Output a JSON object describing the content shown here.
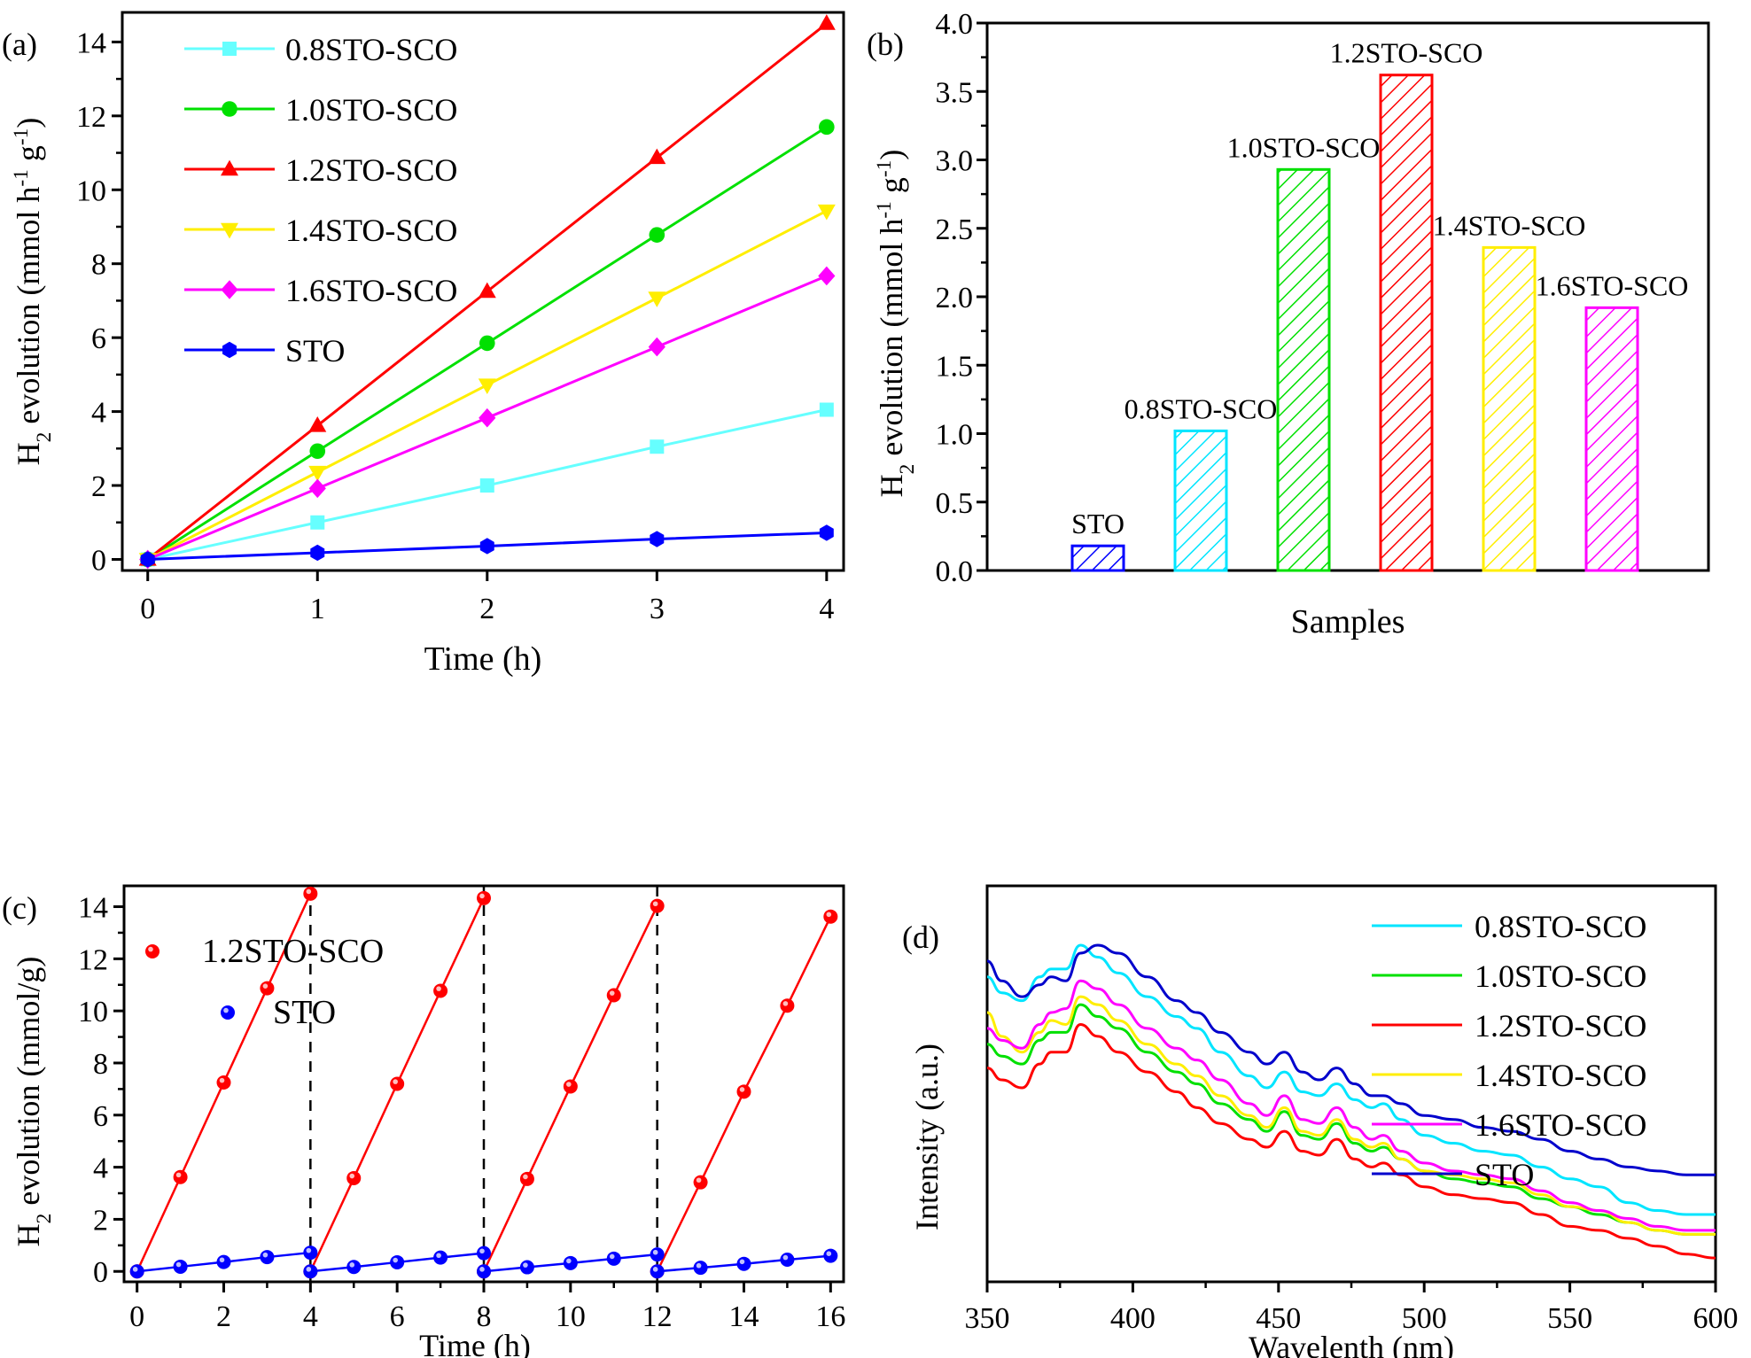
{
  "chart_data": [
    {
      "panel": "(a)",
      "type": "line",
      "title": "",
      "xlabel": "Time (h)",
      "ylabel": "H2 evolution (mmol h-1 g-1)",
      "xlim": [
        -0.15,
        4.1
      ],
      "ylim": [
        -0.3,
        14.8
      ],
      "xticks": [
        0,
        1,
        2,
        3,
        4
      ],
      "yticks": [
        0,
        2,
        4,
        6,
        8,
        10,
        12,
        14
      ],
      "legend_position": "top-left",
      "x": [
        0,
        1,
        2,
        3,
        4
      ],
      "series": [
        {
          "name": "0.8STO-SCO",
          "color": "#66ffff",
          "marker": "square",
          "values": [
            0,
            1.0,
            2.0,
            3.05,
            4.05
          ]
        },
        {
          "name": "1.0STO-SCO",
          "color": "#00e000",
          "marker": "circle",
          "values": [
            0,
            2.93,
            5.85,
            8.78,
            11.7
          ]
        },
        {
          "name": "1.2STO-SCO",
          "color": "#ff0000",
          "marker": "triangle-up",
          "values": [
            0,
            3.62,
            7.25,
            10.87,
            14.5
          ]
        },
        {
          "name": "1.4STO-SCO",
          "color": "#ffee00",
          "marker": "triangle-down",
          "values": [
            0,
            2.36,
            4.72,
            7.07,
            9.43
          ]
        },
        {
          "name": "1.6STO-SCO",
          "color": "#ff00ff",
          "marker": "diamond",
          "values": [
            0,
            1.92,
            3.83,
            5.75,
            7.67
          ]
        },
        {
          "name": "STO",
          "color": "#0000ff",
          "marker": "hexagon",
          "values": [
            0,
            0.18,
            0.36,
            0.55,
            0.72
          ]
        }
      ]
    },
    {
      "panel": "(b)",
      "type": "bar",
      "title": "",
      "xlabel": "Samples",
      "ylabel": "H2 evolution (mmol h-1 g-1)",
      "ylim": [
        0,
        4.0
      ],
      "yticks": [
        0.0,
        0.5,
        1.0,
        1.5,
        2.0,
        2.5,
        3.0,
        3.5,
        4.0
      ],
      "categories": [
        "STO",
        "0.8STO-SCO",
        "1.0STO-SCO",
        "1.2STO-SCO",
        "1.4STO-SCO",
        "1.6STO-SCO"
      ],
      "values": [
        0.18,
        1.02,
        2.93,
        3.62,
        2.36,
        1.92
      ],
      "colors": [
        "#0000ff",
        "#00e5ff",
        "#00e000",
        "#ff0000",
        "#ffee00",
        "#ff00ff"
      ],
      "bar_labels": [
        "STO",
        "0.8STO-SCO",
        "1.0STO-SCO",
        "1.2STO-SCO",
        "1.4STO-SCO",
        "1.6STO-SCO"
      ],
      "pattern": "hatched"
    },
    {
      "panel": "(c)",
      "type": "scatter",
      "title": "",
      "xlabel": "Time (h)",
      "ylabel": "H2 evolution (mmol/g)",
      "xlim": [
        -0.3,
        16.3
      ],
      "ylim": [
        -0.4,
        14.8
      ],
      "xticks": [
        0,
        2,
        4,
        6,
        8,
        10,
        12,
        14,
        16
      ],
      "yticks": [
        0,
        2,
        4,
        6,
        8,
        10,
        12,
        14
      ],
      "legend_position": "top-left",
      "cycle_dividers": [
        4,
        8,
        12
      ],
      "series": [
        {
          "name": "1.2STO-SCO",
          "color": "#ff0000",
          "cycles": [
            {
              "x": [
                0,
                1,
                2,
                3,
                4
              ],
              "y": [
                0,
                3.62,
                7.25,
                10.87,
                14.5
              ]
            },
            {
              "x": [
                4,
                5,
                6,
                7,
                8
              ],
              "y": [
                0,
                3.58,
                7.2,
                10.77,
                14.33
              ]
            },
            {
              "x": [
                8,
                9,
                10,
                11,
                12
              ],
              "y": [
                0,
                3.55,
                7.1,
                10.6,
                14.03
              ]
            },
            {
              "x": [
                12,
                13,
                14,
                15,
                16
              ],
              "y": [
                0,
                3.42,
                6.9,
                10.2,
                13.62
              ]
            }
          ]
        },
        {
          "name": "STO",
          "color": "#0000ff",
          "cycles": [
            {
              "x": [
                0,
                1,
                2,
                3,
                4
              ],
              "y": [
                0,
                0.18,
                0.36,
                0.55,
                0.72
              ]
            },
            {
              "x": [
                4,
                5,
                6,
                7,
                8
              ],
              "y": [
                0,
                0.17,
                0.35,
                0.53,
                0.7
              ]
            },
            {
              "x": [
                8,
                9,
                10,
                11,
                12
              ],
              "y": [
                0,
                0.16,
                0.32,
                0.49,
                0.65
              ]
            },
            {
              "x": [
                12,
                13,
                14,
                15,
                16
              ],
              "y": [
                0,
                0.14,
                0.29,
                0.45,
                0.6
              ]
            }
          ]
        }
      ]
    },
    {
      "panel": "(d)",
      "type": "line",
      "title": "",
      "xlabel": "Wavelenth (nm)",
      "ylabel": "Intensity (a.u.)",
      "xlim": [
        350,
        600
      ],
      "ylim": [
        0,
        100
      ],
      "xticks": [
        350,
        400,
        450,
        500,
        550,
        600
      ],
      "yticks": [],
      "legend_position": "top-right",
      "x": [
        350,
        355,
        362,
        368,
        372,
        377,
        382,
        388,
        395,
        405,
        415,
        422,
        430,
        440,
        446,
        452,
        458,
        464,
        470,
        476,
        482,
        486,
        492,
        500,
        510,
        520,
        530,
        540,
        550,
        560,
        570,
        580,
        590,
        600
      ],
      "series": [
        {
          "name": "0.8STO-SCO",
          "color": "#00e5ff",
          "values": [
            77,
            73,
            71,
            77,
            79,
            79,
            85,
            82,
            78,
            72,
            67,
            64,
            58,
            52,
            49,
            53,
            48,
            47,
            50,
            46,
            44,
            45,
            41,
            37,
            35,
            33,
            32,
            29,
            26,
            24,
            20,
            18,
            17,
            17
          ]
        },
        {
          "name": "1.0STO-SCO",
          "color": "#00e000",
          "values": [
            60,
            57,
            55,
            61,
            63,
            63,
            70,
            67,
            64,
            58,
            53,
            50,
            45,
            41,
            38,
            43,
            37,
            36,
            40,
            35,
            33,
            34,
            31,
            28,
            26,
            25,
            24,
            21,
            19,
            17,
            15,
            13,
            12,
            12
          ]
        },
        {
          "name": "1.2STO-SCO",
          "color": "#ff0000",
          "values": [
            54,
            51,
            49,
            55,
            58,
            58,
            65,
            62,
            58,
            53,
            48,
            44,
            40,
            36,
            34,
            38,
            33,
            32,
            36,
            31,
            29,
            30,
            27,
            24,
            22,
            21,
            20,
            17,
            14,
            13,
            11,
            9,
            7,
            6
          ]
        },
        {
          "name": "1.4STO-SCO",
          "color": "#ffee00",
          "values": [
            68,
            62,
            58,
            63,
            66,
            65,
            72,
            70,
            66,
            60,
            55,
            52,
            47,
            42,
            39,
            44,
            38,
            37,
            41,
            36,
            34,
            35,
            31,
            28,
            27,
            26,
            25,
            22,
            19,
            18,
            15,
            13,
            12,
            12
          ]
        },
        {
          "name": "1.6STO-SCO",
          "color": "#ff00ff",
          "values": [
            64,
            61,
            59,
            65,
            68,
            69,
            76,
            74,
            70,
            64,
            59,
            56,
            51,
            45,
            42,
            47,
            41,
            40,
            44,
            39,
            36,
            37,
            33,
            30,
            28,
            27,
            26,
            23,
            20,
            18,
            16,
            14,
            13,
            13
          ]
        },
        {
          "name": "STO",
          "color": "#0000cc",
          "values": [
            81,
            76,
            72,
            75,
            77,
            76,
            83,
            85,
            83,
            77,
            71,
            68,
            63,
            58,
            55,
            58,
            53,
            51,
            54,
            50,
            47,
            47,
            45,
            42,
            41,
            39,
            38,
            36,
            33,
            31,
            29,
            28,
            27,
            27
          ]
        }
      ]
    }
  ],
  "panels": {
    "a": {
      "label": "(a)"
    },
    "b": {
      "label": "(b)"
    },
    "c": {
      "label": "(c)"
    },
    "d": {
      "label": "(d)"
    }
  }
}
